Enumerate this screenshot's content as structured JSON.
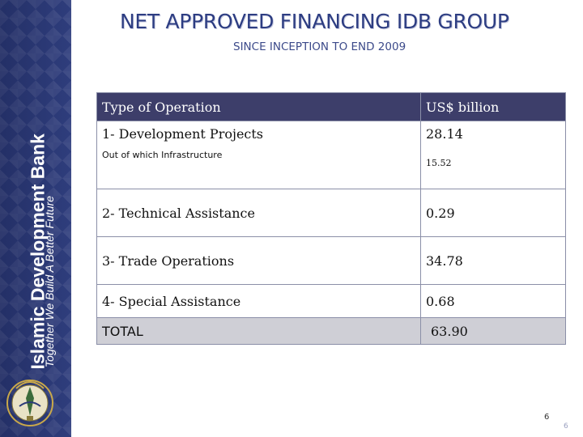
{
  "sidebar": {
    "brand_name": "Islamic Development Bank",
    "tagline": "Together We Build A Better Future"
  },
  "header": {
    "title": "NET APPROVED FINANCING IDB GROUP",
    "subtitle": "SINCE INCEPTION TO END 2009"
  },
  "table": {
    "columns": [
      "Type of Operation",
      "US$ billion"
    ],
    "rows": [
      {
        "label": "1- Development Projects",
        "value": "28.14"
      },
      {
        "label": "Out of which Infrastructure",
        "value": "15.52"
      },
      {
        "label": "2- Technical Assistance",
        "value": "0.29"
      },
      {
        "label": "3- Trade Operations",
        "value": "34.78"
      },
      {
        "label": "4- Special Assistance",
        "value": "0.68"
      },
      {
        "label": "TOTAL",
        "value": "63.90"
      }
    ]
  },
  "footer": {
    "page_number": "6",
    "page_number_small": "6"
  },
  "colors": {
    "header_row": "#3d3e6a",
    "total_row": "#cfcfd6",
    "title": "#2d3d82",
    "sidebar": "#2c3a78"
  }
}
